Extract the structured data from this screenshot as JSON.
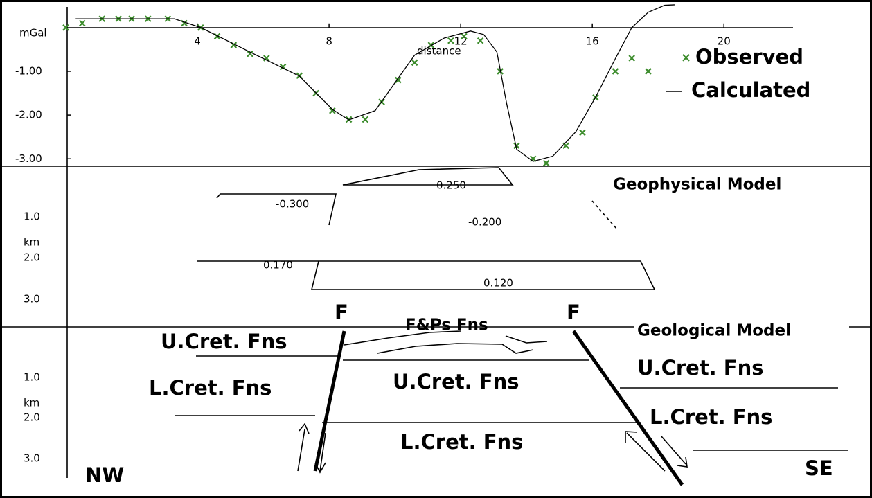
{
  "chart_data": {
    "type": "line",
    "xlabel": "distance",
    "ylabel": "mGal",
    "series": [
      {
        "name": "Observed",
        "color": "#3c8c2c",
        "marker": "x",
        "x": [
          0.0,
          0.5,
          1.1,
          1.6,
          2.0,
          2.5,
          3.1,
          3.6,
          4.1,
          4.6,
          5.1,
          5.6,
          6.1,
          6.6,
          7.1,
          7.6,
          8.1,
          8.6,
          9.1,
          9.6,
          10.1,
          10.6,
          11.1,
          11.7,
          12.1,
          12.6,
          13.2,
          13.7,
          14.2,
          14.6,
          15.2,
          15.7,
          16.1,
          16.7,
          17.2,
          17.7
        ],
        "values": [
          0.0,
          0.1,
          0.2,
          0.2,
          0.2,
          0.2,
          0.2,
          0.1,
          0.0,
          -0.2,
          -0.4,
          -0.6,
          -0.7,
          -0.9,
          -1.1,
          -1.5,
          -1.9,
          -2.1,
          -2.1,
          -1.7,
          -1.2,
          -0.8,
          -0.4,
          -0.3,
          -0.2,
          -0.3,
          -1.0,
          -2.7,
          -3.0,
          -3.1,
          -2.7,
          -2.4,
          -1.6,
          -1.0,
          -0.7,
          -1.0
        ]
      },
      {
        "name": "Calculated",
        "color": "#000000",
        "marker": "line",
        "x": [
          0.3,
          1.2,
          3.3,
          4.1,
          5.6,
          7.1,
          8.1,
          8.6,
          9.4,
          10.6,
          11.5,
          12.3,
          12.7,
          13.1,
          13.4,
          13.7,
          14.2,
          14.8,
          15.5,
          16.1,
          16.7,
          17.2,
          17.7,
          18.2,
          18.5
        ],
        "values": [
          0.2,
          0.2,
          0.2,
          0.0,
          -0.56,
          -1.11,
          -1.87,
          -2.11,
          -1.9,
          -0.63,
          -0.24,
          -0.08,
          -0.16,
          -0.56,
          -1.75,
          -2.78,
          -3.06,
          -2.94,
          -2.38,
          -1.59,
          -0.71,
          0.0,
          0.35,
          0.51,
          0.52
        ]
      }
    ],
    "xlim": [
      0,
      22.1
    ],
    "ylim": [
      -3.17,
      0.63
    ],
    "xticks": [
      4,
      8,
      12,
      16,
      20
    ],
    "yticks": [
      {
        "value": -1,
        "label": "-1.00"
      },
      {
        "value": -2,
        "label": "-2.00"
      },
      {
        "value": -3,
        "label": "-3.00"
      }
    ]
  },
  "geophysical_model": {
    "title": "Geophysical Model",
    "depth_label": "km",
    "depth_ticks": [
      "1.0",
      "2.0",
      "3.0"
    ],
    "densities": [
      "0.250",
      "-0.300",
      "-0.200",
      "0.170",
      "0.120"
    ]
  },
  "geological_model": {
    "title": "Geological Model",
    "depth_label": "km",
    "depth_ticks": [
      "1.0",
      "2.0",
      "3.0"
    ],
    "faults": [
      "F",
      "F"
    ],
    "top_unit": "F&Ps Fns",
    "units": [
      "U.Cret. Fns",
      "L.Cret. Fns",
      "U.Cret. Fns",
      "L.Cret. Fns",
      "U.Cret. Fns",
      "L.Cret. Fns"
    ],
    "directions": [
      "NW",
      "SE"
    ]
  }
}
